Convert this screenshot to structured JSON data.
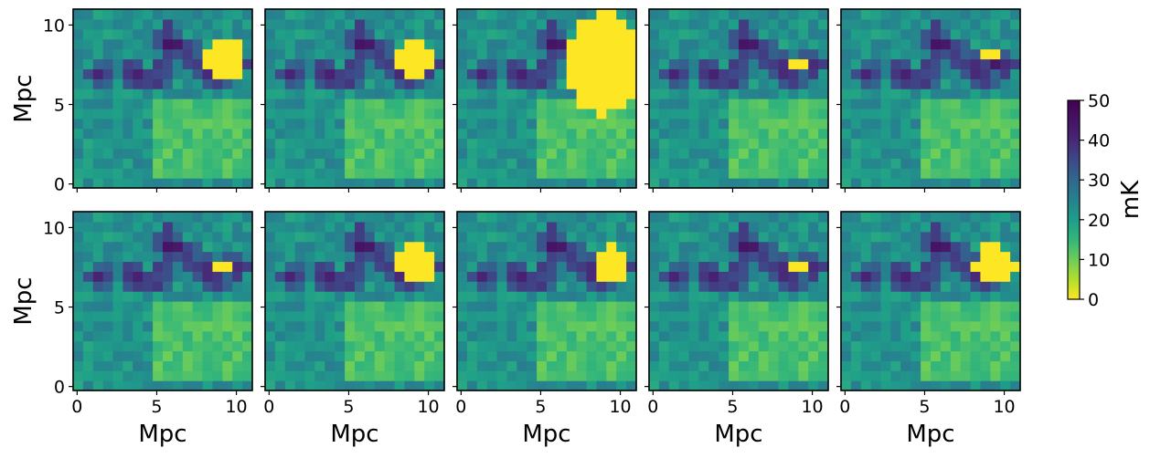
{
  "chart_data": {
    "type": "heatmap",
    "grid": {
      "rows": 2,
      "cols": 5
    },
    "xlabel": "Mpc",
    "ylabel": "Mpc",
    "xlim": [
      -0.25,
      11
    ],
    "ylim": [
      -0.25,
      11
    ],
    "xticks": [
      0,
      5,
      10
    ],
    "yticks": [
      0,
      5,
      10
    ],
    "colorbar": {
      "label": "mK",
      "range": [
        0,
        50
      ],
      "ticks": [
        0,
        10,
        20,
        30,
        40,
        50
      ],
      "colormap": "viridis_r"
    },
    "cells_per_side": 18,
    "base_features": {
      "background_mK": 22,
      "low_region": {
        "x_range": [
          5,
          11
        ],
        "y_range": [
          0.5,
          5.5
        ],
        "value_mK": 13
      },
      "filament_mK": 45,
      "filament_points": [
        [
          5.5,
          9.2
        ],
        [
          6.3,
          8.7
        ],
        [
          7.0,
          8.2
        ],
        [
          7.7,
          7.7
        ],
        [
          8.3,
          7.3
        ],
        [
          8.8,
          6.8
        ],
        [
          9.8,
          7.5
        ],
        [
          5.2,
          6.8
        ],
        [
          3.5,
          6.8
        ],
        [
          1.5,
          6.8
        ]
      ]
    },
    "panels": [
      {
        "panel": 1,
        "bright_region": {
          "cx": 9.3,
          "cy": 7.8,
          "rx": 1.4,
          "ry": 1.4,
          "value_mK": 0
        }
      },
      {
        "panel": 2,
        "bright_region": {
          "cx": 9.2,
          "cy": 7.8,
          "rx": 1.15,
          "ry": 1.15,
          "value_mK": 0
        }
      },
      {
        "panel": 3,
        "bright_region": {
          "cx": 9.0,
          "cy": 7.6,
          "rx": 2.4,
          "ry": 3.2,
          "value_mK": 0
        }
      },
      {
        "panel": 4,
        "bright_region": {
          "cx": 9.2,
          "cy": 7.6,
          "rx": 0.55,
          "ry": 0.55,
          "value_mK": 0
        }
      },
      {
        "panel": 5,
        "bright_region": {
          "cx": 9.2,
          "cy": 8.0,
          "rx": 0.5,
          "ry": 0.3,
          "value_mK": 0
        }
      },
      {
        "panel": 6,
        "bright_region": {
          "cx": 9.2,
          "cy": 7.5,
          "rx": 0.55,
          "ry": 0.55,
          "value_mK": 0
        }
      },
      {
        "panel": 7,
        "bright_region": {
          "cx": 9.2,
          "cy": 7.6,
          "rx": 1.15,
          "ry": 1.3,
          "value_mK": 0
        }
      },
      {
        "panel": 8,
        "bright_region": {
          "cx": 9.3,
          "cy": 7.7,
          "rx": 1.1,
          "ry": 1.2,
          "value_mK": 0
        }
      },
      {
        "panel": 9,
        "bright_region": {
          "cx": 9.2,
          "cy": 7.5,
          "rx": 0.55,
          "ry": 0.55,
          "value_mK": 0
        }
      },
      {
        "panel": 10,
        "bright_region": {
          "cx": 9.4,
          "cy": 7.7,
          "rx": 1.3,
          "ry": 1.25,
          "value_mK": 0
        }
      }
    ]
  }
}
